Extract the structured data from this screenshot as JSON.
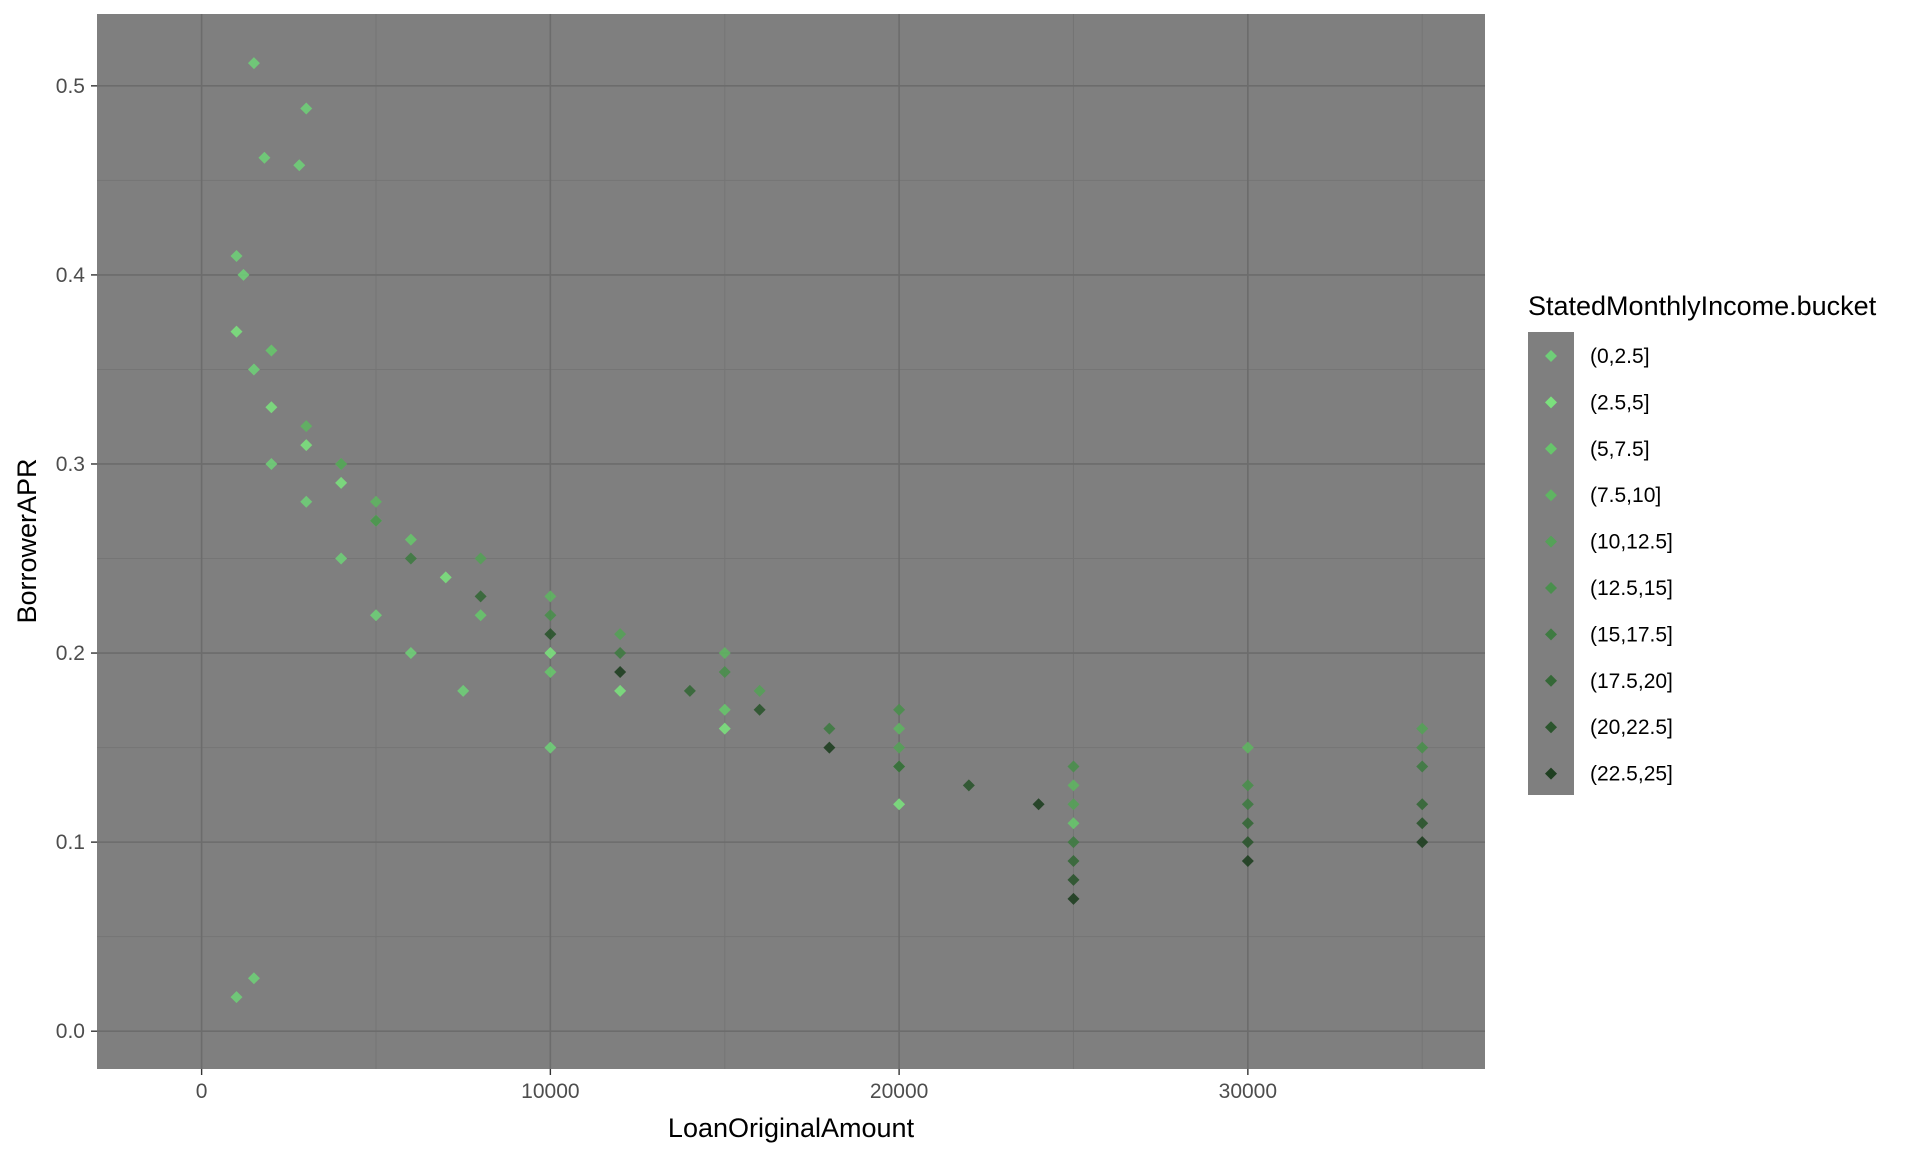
{
  "chart_data": {
    "type": "scatter",
    "title": "",
    "xlabel": "LoanOriginalAmount",
    "ylabel": "BorrowerAPR",
    "xlim": [
      -3000,
      36800
    ],
    "ylim": [
      -0.02,
      0.538
    ],
    "x_ticks": [
      0,
      10000,
      20000,
      30000
    ],
    "x_tick_labels": [
      "0",
      "10000",
      "20000",
      "30000"
    ],
    "y_ticks": [
      0.0,
      0.1,
      0.2,
      0.3,
      0.4,
      0.5
    ],
    "y_tick_labels": [
      "0.0",
      "0.1",
      "0.2",
      "0.3",
      "0.4",
      "0.5"
    ],
    "grid": true,
    "panel_background": "#7f7f7f",
    "legend": {
      "title": "StatedMonthlyIncome.bucket",
      "placement": "right",
      "entries": [
        "(0,2.5]",
        "(2.5,5]",
        "(5,7.5]",
        "(7.5,10]",
        "(10,12.5]",
        "(12.5,15]",
        "(15,17.5]",
        "(17.5,20]",
        "(20,22.5]",
        "(22.5,25]"
      ]
    },
    "series": [
      {
        "name": "(0,2.5]",
        "color": "#6fce78",
        "points": [
          [
            1000,
            0.41
          ],
          [
            1200,
            0.4
          ],
          [
            1500,
            0.35
          ],
          [
            2000,
            0.3
          ],
          [
            3000,
            0.28
          ],
          [
            4000,
            0.25
          ],
          [
            5000,
            0.22
          ],
          [
            6000,
            0.2
          ],
          [
            7500,
            0.18
          ],
          [
            10000,
            0.15
          ],
          [
            1500,
            0.512
          ],
          [
            1800,
            0.462
          ],
          [
            2800,
            0.458
          ],
          [
            3000,
            0.488
          ],
          [
            1000,
            0.018
          ],
          [
            1500,
            0.028
          ]
        ]
      },
      {
        "name": "(2.5,5]",
        "color": "#7be07d",
        "points": [
          [
            1000,
            0.37
          ],
          [
            2000,
            0.33
          ],
          [
            3000,
            0.31
          ],
          [
            4000,
            0.29
          ],
          [
            5000,
            0.27
          ],
          [
            7000,
            0.24
          ],
          [
            10000,
            0.2
          ],
          [
            12000,
            0.18
          ],
          [
            15000,
            0.16
          ],
          [
            20000,
            0.12
          ]
        ]
      },
      {
        "name": "(5,7.5]",
        "color": "#67c56b",
        "points": [
          [
            2000,
            0.36
          ],
          [
            4000,
            0.3
          ],
          [
            6000,
            0.26
          ],
          [
            8000,
            0.22
          ],
          [
            10000,
            0.19
          ],
          [
            15000,
            0.17
          ],
          [
            20000,
            0.14
          ],
          [
            25000,
            0.11
          ]
        ]
      },
      {
        "name": "(7.5,10]",
        "color": "#5fb462",
        "points": [
          [
            3000,
            0.32
          ],
          [
            5000,
            0.28
          ],
          [
            10000,
            0.23
          ],
          [
            15000,
            0.2
          ],
          [
            20000,
            0.16
          ],
          [
            25000,
            0.13
          ],
          [
            30000,
            0.15
          ]
        ]
      },
      {
        "name": "(10,12.5]",
        "color": "#55a158",
        "points": [
          [
            4000,
            0.3
          ],
          [
            8000,
            0.25
          ],
          [
            12000,
            0.21
          ],
          [
            16000,
            0.18
          ],
          [
            20000,
            0.15
          ],
          [
            25000,
            0.12
          ],
          [
            35000,
            0.16
          ]
        ]
      },
      {
        "name": "(12.5,15]",
        "color": "#4a8f4d",
        "points": [
          [
            5000,
            0.27
          ],
          [
            10000,
            0.22
          ],
          [
            15000,
            0.19
          ],
          [
            20000,
            0.17
          ],
          [
            25000,
            0.14
          ],
          [
            30000,
            0.13
          ],
          [
            35000,
            0.15
          ]
        ]
      },
      {
        "name": "(15,17.5]",
        "color": "#3f7b42",
        "points": [
          [
            6000,
            0.25
          ],
          [
            12000,
            0.2
          ],
          [
            18000,
            0.16
          ],
          [
            25000,
            0.1
          ],
          [
            30000,
            0.12
          ],
          [
            35000,
            0.14
          ]
        ]
      },
      {
        "name": "(17.5,20]",
        "color": "#356837",
        "points": [
          [
            8000,
            0.23
          ],
          [
            14000,
            0.18
          ],
          [
            20000,
            0.14
          ],
          [
            25000,
            0.09
          ],
          [
            30000,
            0.11
          ],
          [
            35000,
            0.12
          ]
        ]
      },
      {
        "name": "(20,22.5]",
        "color": "#2b552d",
        "points": [
          [
            10000,
            0.21
          ],
          [
            16000,
            0.17
          ],
          [
            22000,
            0.13
          ],
          [
            25000,
            0.08
          ],
          [
            30000,
            0.1
          ],
          [
            35000,
            0.11
          ]
        ]
      },
      {
        "name": "(22.5,25]",
        "color": "#1f3f21",
        "points": [
          [
            12000,
            0.19
          ],
          [
            18000,
            0.15
          ],
          [
            24000,
            0.12
          ],
          [
            25000,
            0.07
          ],
          [
            30000,
            0.09
          ],
          [
            35000,
            0.1
          ]
        ]
      }
    ]
  }
}
